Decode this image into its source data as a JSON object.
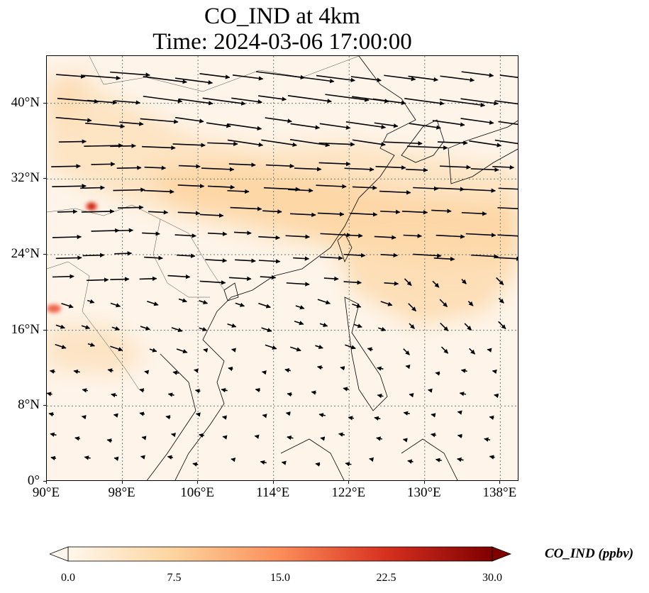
{
  "title": {
    "line1": "CO_IND at 4km",
    "line2": "Time: 2024-03-06 17:00:00"
  },
  "map": {
    "projection": "PlateCarree",
    "lon_range": [
      90,
      140
    ],
    "lat_range": [
      0,
      45
    ],
    "gridlines": "dotted",
    "x_ticks": [
      "90°E",
      "98°E",
      "106°E",
      "114°E",
      "122°E",
      "130°E",
      "138°E"
    ],
    "x_tick_values": [
      90,
      98,
      106,
      114,
      122,
      130,
      138
    ],
    "y_ticks": [
      "0°",
      "8°N",
      "16°N",
      "24°N",
      "32°N",
      "40°N"
    ],
    "y_tick_values": [
      0,
      8,
      16,
      24,
      32,
      40
    ],
    "field": "CO_IND concentration (shaded, OrRd-like colormap)",
    "vectors": "wind vectors at 4km"
  },
  "colorbar": {
    "label": "CO_IND (ppbv)",
    "range": [
      0,
      30
    ],
    "ticks": [
      "0.0",
      "7.5",
      "15.0",
      "22.5",
      "30.0"
    ],
    "tick_values": [
      0,
      7.5,
      15,
      22.5,
      30
    ],
    "colors": [
      "#fff7ec",
      "#fdd49e",
      "#fc8d59",
      "#d7301f",
      "#7f0000"
    ],
    "extend": "both"
  },
  "chart_data": {
    "type": "heatmap",
    "title": "CO_IND at 4km\nTime: 2024-03-06 17:00:00",
    "xlabel": "",
    "ylabel": "",
    "xlim": [
      90,
      140
    ],
    "ylim": [
      0,
      45
    ],
    "colorbar_label": "CO_IND (ppbv)",
    "colorbar_range": [
      0,
      30
    ],
    "features": [
      {
        "name": "hotspot",
        "lon": 94.5,
        "lat": 29.0,
        "value": 22
      },
      {
        "name": "hotspot",
        "lon": 90.5,
        "lat": 18.5,
        "value": 15
      },
      {
        "name": "band",
        "lon_range": [
          90,
          140
        ],
        "lat_range": [
          20,
          38
        ],
        "value": 6
      }
    ]
  }
}
